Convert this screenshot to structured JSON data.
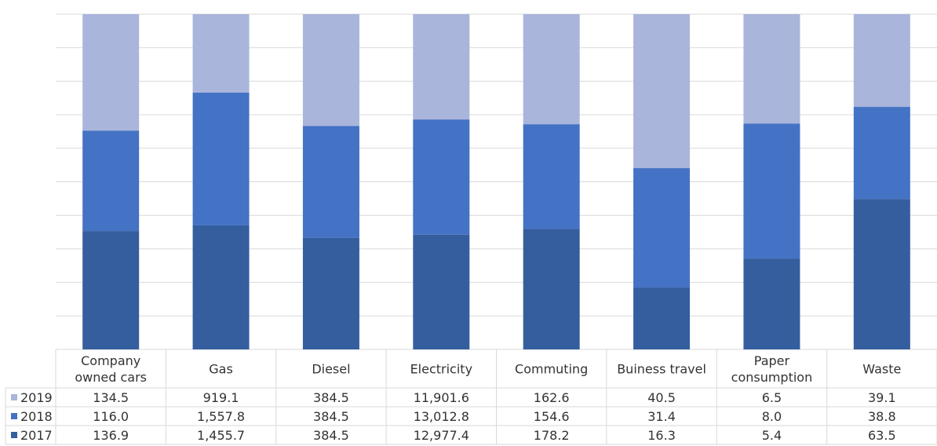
{
  "chart_data": {
    "type": "bar",
    "stacked": true,
    "normalized": true,
    "categories": [
      [
        "Company",
        "owned cars"
      ],
      [
        "Gas"
      ],
      [
        "Diesel"
      ],
      [
        "Electricity"
      ],
      [
        "Commuting"
      ],
      [
        "Buiness travel"
      ],
      [
        "Paper",
        "consumption"
      ],
      [
        "Waste"
      ]
    ],
    "series": [
      {
        "name": "2017",
        "color": "#355E9E",
        "values": [
          136.9,
          1455.7,
          384.5,
          12977.4,
          178.2,
          16.3,
          5.4,
          63.5
        ],
        "labels": [
          "136.9",
          "1,455.7",
          "384.5",
          "12,977.4",
          "178.2",
          "16.3",
          "5.4",
          "63.5"
        ]
      },
      {
        "name": "2018",
        "color": "#4472C4",
        "values": [
          116.0,
          1557.8,
          384.5,
          13012.8,
          154.6,
          31.4,
          8.0,
          38.8
        ],
        "labels": [
          "116.0",
          "1,557.8",
          "384.5",
          "13,012.8",
          "154.6",
          "31.4",
          "8.0",
          "38.8"
        ]
      },
      {
        "name": "2019",
        "color": "#A9B5DA",
        "values": [
          134.5,
          919.1,
          384.5,
          11901.6,
          162.6,
          40.5,
          6.5,
          39.1
        ],
        "labels": [
          "134.5",
          "919.1",
          "384.5",
          "11,901.6",
          "162.6",
          "40.5",
          "6.5",
          "39.1"
        ]
      }
    ],
    "table_row_order": [
      "2019",
      "2018",
      "2017"
    ],
    "grid": true,
    "legend": "data-table-left"
  }
}
